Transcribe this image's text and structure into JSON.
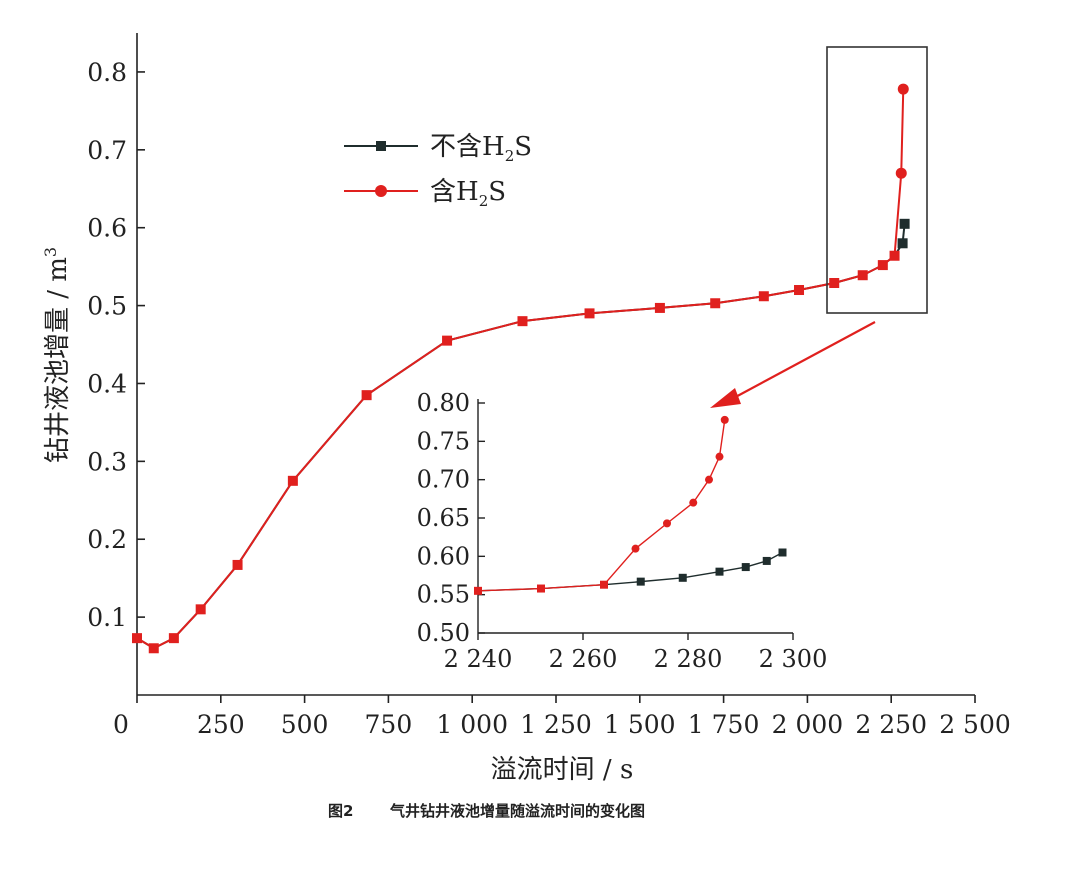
{
  "caption": {
    "number": "图2",
    "text": "气井钻井液池增量随溢流时间的变化图"
  },
  "colors": {
    "no_h2s": "#1f2d2d",
    "h2s": "#e0201e",
    "axis": "#222222",
    "arrow": "#e0201e"
  },
  "chart_data": [
    {
      "id": "main",
      "type": "line",
      "xlabel": "溢流时间 / s",
      "ylabel": "钻井液池增量 / m",
      "ylabel_sup": "3",
      "xlim": [
        0,
        2500
      ],
      "ylim": [
        0,
        0.85
      ],
      "x_ticks": [
        0,
        250,
        500,
        750,
        1000,
        1250,
        1500,
        1750,
        2000,
        2250,
        2500
      ],
      "x_tick_labels": [
        "0",
        "250",
        "500",
        "750",
        "1 000",
        "1 250",
        "1 500",
        "1 750",
        "2 000",
        "2 250",
        "2 500"
      ],
      "y_ticks": [
        0.1,
        0.2,
        0.3,
        0.4,
        0.5,
        0.6,
        0.7,
        0.8
      ],
      "y_tick_labels": [
        "0.1",
        "0.2",
        "0.3",
        "0.4",
        "0.5",
        "0.6",
        "0.7",
        "0.8"
      ],
      "legend": {
        "placement": "upper-left",
        "entries": [
          {
            "label": "不含H",
            "sub": "2",
            "tail": "S",
            "marker": "square"
          },
          {
            "label": "含H",
            "sub": "2",
            "tail": "S",
            "marker": "circle"
          }
        ]
      },
      "series": [
        {
          "name": "不含H2S",
          "marker": "square",
          "x": [
            0,
            50,
            110,
            190,
            300,
            465,
            685,
            925,
            1150,
            1350,
            1560,
            1725,
            1870,
            1975,
            2080,
            2165,
            2225,
            2260,
            2284,
            2290
          ],
          "y": [
            0.073,
            0.06,
            0.073,
            0.11,
            0.167,
            0.275,
            0.385,
            0.455,
            0.48,
            0.49,
            0.497,
            0.503,
            0.512,
            0.52,
            0.529,
            0.539,
            0.552,
            0.564,
            0.58,
            0.605
          ]
        },
        {
          "name": "含H2S",
          "marker": "circle",
          "x": [
            0,
            50,
            110,
            190,
            300,
            465,
            685,
            925,
            1150,
            1350,
            1560,
            1725,
            1870,
            1975,
            2080,
            2165,
            2225,
            2260,
            2280,
            2286
          ],
          "y": [
            0.073,
            0.06,
            0.073,
            0.11,
            0.167,
            0.275,
            0.385,
            0.455,
            0.48,
            0.49,
            0.497,
            0.503,
            0.512,
            0.52,
            0.529,
            0.539,
            0.552,
            0.564,
            0.67,
            0.778
          ]
        }
      ]
    },
    {
      "id": "inset",
      "type": "line",
      "xlim": [
        2240,
        2300
      ],
      "ylim": [
        0.5,
        0.8
      ],
      "x_ticks": [
        2240,
        2260,
        2280,
        2300
      ],
      "x_tick_labels": [
        "2 240",
        "2 260",
        "2 280",
        "2 300"
      ],
      "y_ticks": [
        0.5,
        0.55,
        0.6,
        0.65,
        0.7,
        0.75,
        0.8
      ],
      "y_tick_labels": [
        "0.50",
        "0.55",
        "0.60",
        "0.65",
        "0.70",
        "0.75",
        "0.80"
      ],
      "series": [
        {
          "name": "不含H2S",
          "marker": "square",
          "x": [
            2240,
            2252,
            2264,
            2271,
            2279,
            2286,
            2291,
            2295,
            2298
          ],
          "y": [
            0.555,
            0.558,
            0.563,
            0.567,
            0.572,
            0.58,
            0.586,
            0.594,
            0.605
          ]
        },
        {
          "name": "含H2S",
          "marker": "circle",
          "x": [
            2240,
            2252,
            2264,
            2270,
            2276,
            2281,
            2284,
            2286,
            2287
          ],
          "y": [
            0.555,
            0.558,
            0.563,
            0.61,
            0.643,
            0.67,
            0.7,
            0.73,
            0.778
          ]
        }
      ]
    }
  ]
}
